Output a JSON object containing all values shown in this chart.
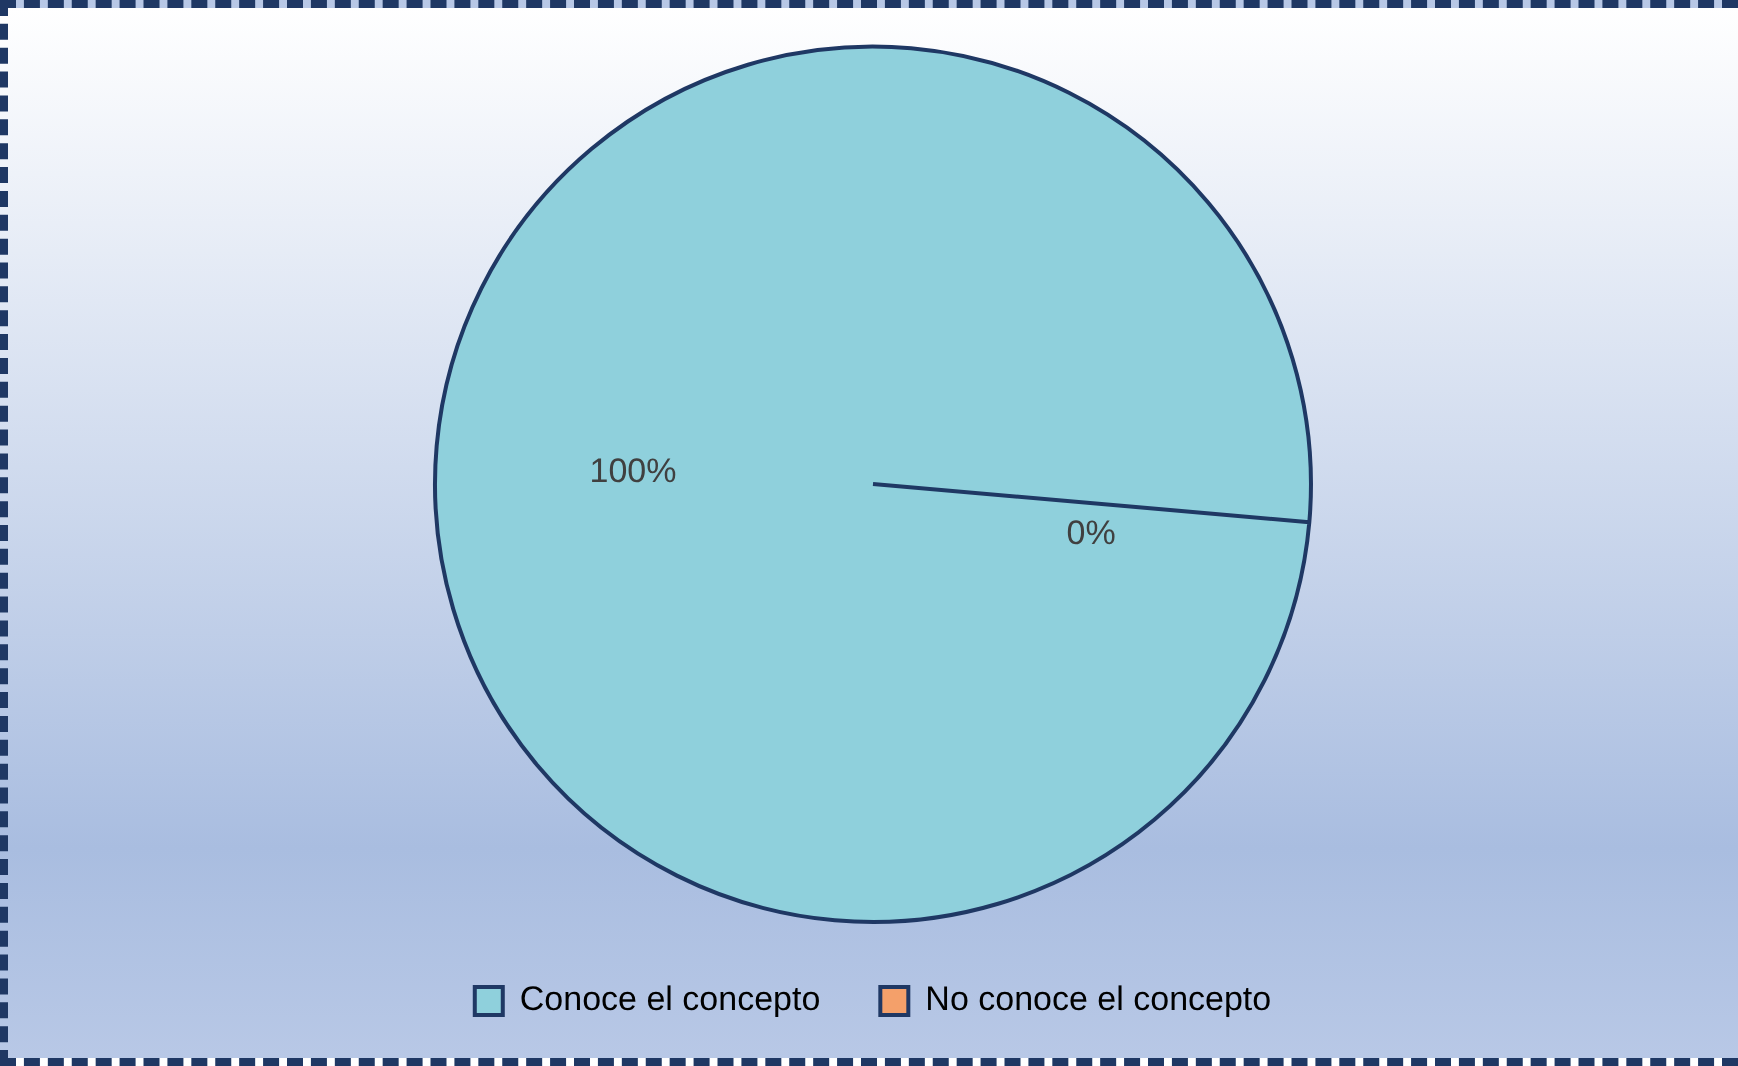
{
  "chart_data": {
    "type": "pie",
    "categories": [
      "Conoce el concepto",
      "No conoce el concepto"
    ],
    "values": [
      100,
      0
    ],
    "colors": [
      "#8fd0dc",
      "#f4a06a"
    ],
    "value_labels": [
      "100%",
      "0%"
    ],
    "legend": "bottom"
  }
}
